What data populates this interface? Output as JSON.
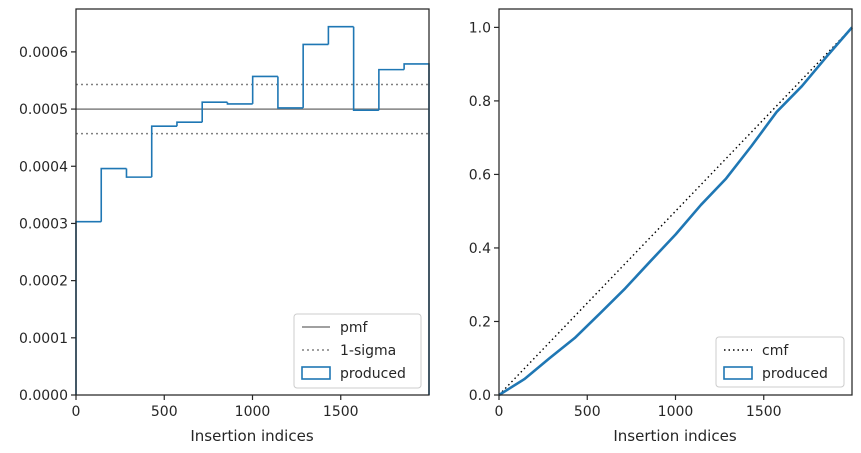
{
  "chart_data": [
    {
      "type": "histogram",
      "xlabel": "Insertion indices",
      "ylabel": "",
      "xlim": [
        0,
        2000
      ],
      "ylim": [
        0,
        0.000675
      ],
      "xticks": [
        0,
        500,
        1000,
        1500
      ],
      "yticks": [
        0.0,
        0.0001,
        0.0002,
        0.0003,
        0.0004,
        0.0005,
        0.0006
      ],
      "ytick_labels": [
        "0.0000",
        "0.0001",
        "0.0002",
        "0.0003",
        "0.0004",
        "0.0005",
        "0.0006"
      ],
      "bin_edges": [
        0,
        143,
        286,
        429,
        572,
        715,
        858,
        1001,
        1144,
        1287,
        1430,
        1573,
        1716,
        1859,
        2000
      ],
      "values": [
        0.000303,
        0.000396,
        0.000381,
        0.00047,
        0.000477,
        0.000512,
        0.000509,
        0.000557,
        0.000502,
        0.000613,
        0.000644,
        0.000498,
        0.000569,
        0.000579
      ],
      "pmf": 0.0005,
      "sigma_lines": [
        0.000543,
        0.000457
      ],
      "series_colors": {
        "produced": "#1f77b4",
        "pmf": "#808080",
        "sigma": "#808080"
      },
      "legend": {
        "location": "lower right",
        "entries": [
          "pmf",
          "1-sigma",
          "produced"
        ]
      }
    },
    {
      "type": "line",
      "xlabel": "Insertion indices",
      "ylabel": "",
      "xlim": [
        0,
        2000
      ],
      "ylim": [
        0,
        1.05
      ],
      "xticks": [
        0,
        500,
        1000,
        1500
      ],
      "yticks": [
        0.0,
        0.2,
        0.4,
        0.6,
        0.8,
        1.0
      ],
      "ytick_labels": [
        "0.0",
        "0.2",
        "0.4",
        "0.6",
        "0.8",
        "1.0"
      ],
      "cmf": {
        "x": [
          0,
          2000
        ],
        "y": [
          0,
          1.0
        ]
      },
      "produced": {
        "x": [
          0,
          143,
          286,
          429,
          572,
          715,
          858,
          1001,
          1144,
          1287,
          1430,
          1573,
          1716,
          1859,
          2000
        ],
        "y": [
          0,
          0.043,
          0.1,
          0.155,
          0.222,
          0.29,
          0.364,
          0.437,
          0.517,
          0.589,
          0.677,
          0.77,
          0.84,
          0.922,
          1.0
        ]
      },
      "series_colors": {
        "produced": "#1f77b4",
        "cmf": "#000000"
      },
      "legend": {
        "location": "lower right",
        "entries": [
          "cmf",
          "produced"
        ]
      }
    }
  ]
}
